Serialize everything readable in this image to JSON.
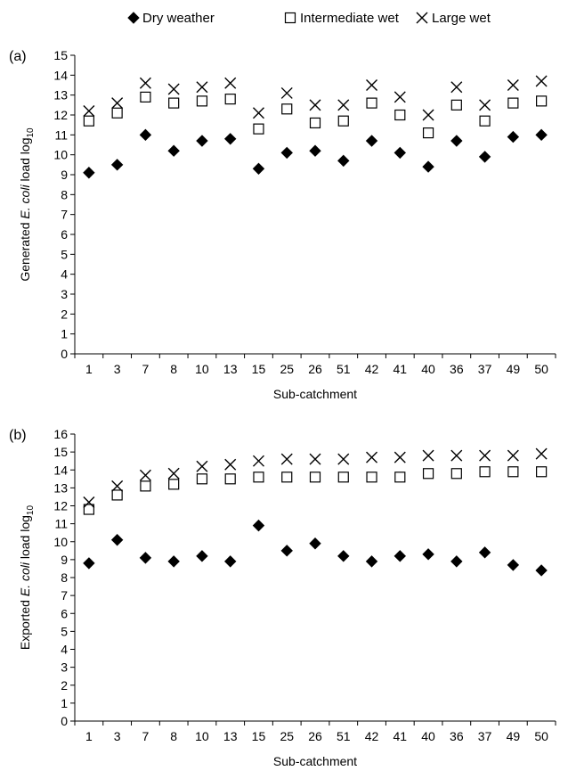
{
  "legend": {
    "items": [
      {
        "label": "Dry weather",
        "marker": "diamond"
      },
      {
        "label": "Intermediate wet",
        "marker": "square"
      },
      {
        "label": "Large wet",
        "marker": "cross"
      }
    ]
  },
  "chart_data": [
    {
      "type": "scatter",
      "panel_label": "(a)",
      "ylabel_prefix": "Generated ",
      "ylabel_italic": "E. coli",
      "ylabel_suffix": " load log",
      "ylabel_subscript": "10",
      "xlabel": "Sub-catchment",
      "categories": [
        "1",
        "3",
        "7",
        "8",
        "10",
        "13",
        "15",
        "25",
        "26",
        "51",
        "42",
        "41",
        "40",
        "36",
        "37",
        "49",
        "50"
      ],
      "ylim": [
        0,
        15
      ],
      "yticks": [
        0,
        1,
        2,
        3,
        4,
        5,
        6,
        7,
        8,
        9,
        10,
        11,
        12,
        13,
        14,
        15
      ],
      "grid": false,
      "series": [
        {
          "name": "Dry weather",
          "marker": "diamond",
          "values": [
            9.1,
            9.5,
            11.0,
            10.2,
            10.7,
            10.8,
            9.3,
            10.1,
            10.2,
            9.7,
            10.7,
            10.1,
            9.4,
            10.7,
            9.9,
            10.9,
            11.0
          ]
        },
        {
          "name": "Intermediate wet",
          "marker": "square",
          "values": [
            11.7,
            12.1,
            12.9,
            12.6,
            12.7,
            12.8,
            11.3,
            12.3,
            11.6,
            11.7,
            12.6,
            12.0,
            11.1,
            12.5,
            11.7,
            12.6,
            12.7
          ]
        },
        {
          "name": "Large wet",
          "marker": "cross",
          "values": [
            12.2,
            12.6,
            13.6,
            13.3,
            13.4,
            13.6,
            12.1,
            13.1,
            12.5,
            12.5,
            13.5,
            12.9,
            12.0,
            13.4,
            12.5,
            13.5,
            13.7
          ]
        }
      ]
    },
    {
      "type": "scatter",
      "panel_label": "(b)",
      "ylabel_prefix": "Exported ",
      "ylabel_italic": "E. coli",
      "ylabel_suffix": " load log",
      "ylabel_subscript": "10",
      "xlabel": "Sub-catchment",
      "categories": [
        "1",
        "3",
        "7",
        "8",
        "10",
        "13",
        "15",
        "25",
        "26",
        "51",
        "42",
        "41",
        "40",
        "36",
        "37",
        "49",
        "50"
      ],
      "ylim": [
        0,
        16
      ],
      "yticks": [
        0,
        1,
        2,
        3,
        4,
        5,
        6,
        7,
        8,
        9,
        10,
        11,
        12,
        13,
        14,
        15,
        16
      ],
      "grid": false,
      "series": [
        {
          "name": "Dry weather",
          "marker": "diamond",
          "values": [
            8.8,
            10.1,
            9.1,
            8.9,
            9.2,
            8.9,
            10.9,
            9.5,
            9.9,
            9.2,
            8.9,
            9.2,
            9.3,
            8.9,
            9.4,
            8.7,
            8.4
          ]
        },
        {
          "name": "Intermediate wet",
          "marker": "square",
          "values": [
            11.8,
            12.6,
            13.1,
            13.2,
            13.5,
            13.5,
            13.6,
            13.6,
            13.6,
            13.6,
            13.6,
            13.6,
            13.8,
            13.8,
            13.9,
            13.9,
            13.9
          ]
        },
        {
          "name": "Large wet",
          "marker": "cross",
          "values": [
            12.2,
            13.1,
            13.7,
            13.8,
            14.2,
            14.3,
            14.5,
            14.6,
            14.6,
            14.6,
            14.7,
            14.7,
            14.8,
            14.8,
            14.8,
            14.8,
            14.9
          ]
        }
      ]
    }
  ]
}
